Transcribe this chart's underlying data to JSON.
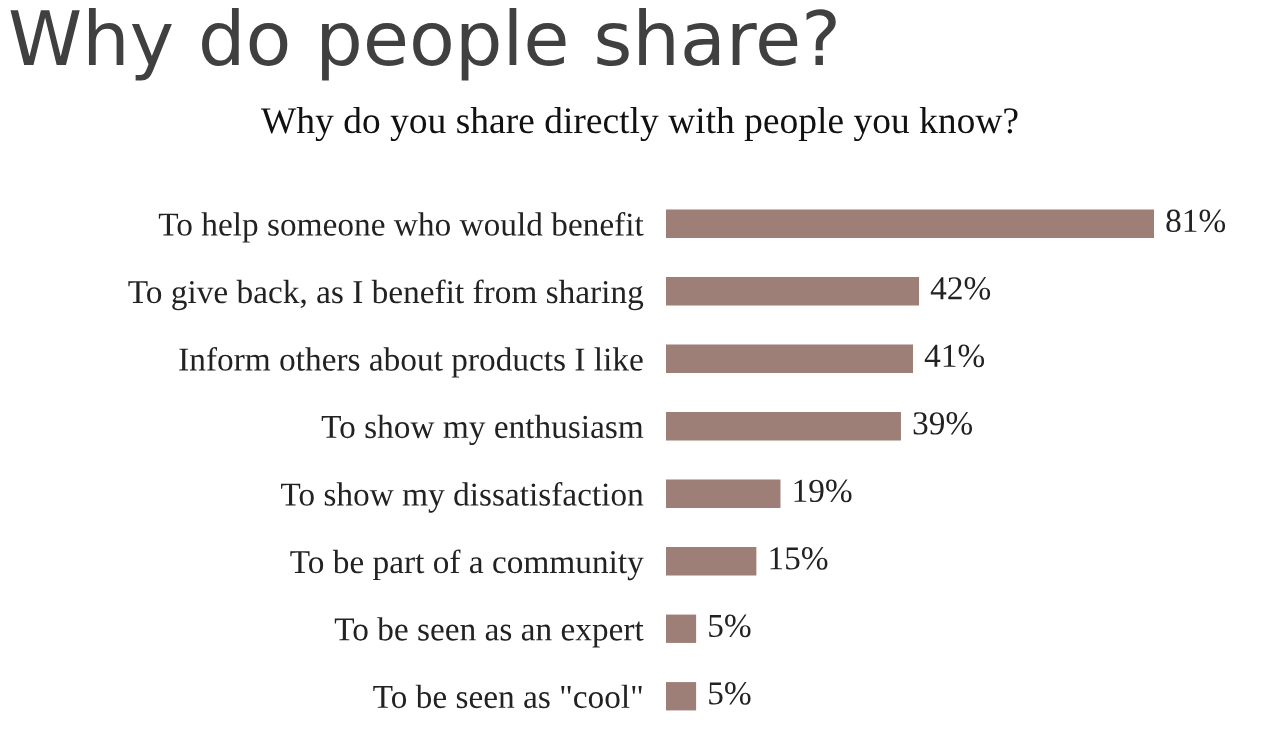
{
  "chart_data": {
    "type": "bar",
    "orientation": "horizontal",
    "title": "Why do people share?",
    "subtitle": "Why do you share directly with people you know?",
    "categories": [
      "To help someone who would benefit",
      "To give back, as I benefit from sharing",
      "Inform others about products I like",
      "To show my enthusiasm",
      "To show my dissatisfaction",
      "To be part of a community",
      "To be seen as an expert",
      "To be seen as \"cool\""
    ],
    "values": [
      81,
      42,
      41,
      39,
      19,
      15,
      5,
      5
    ],
    "value_labels": [
      "81%",
      "42%",
      "41%",
      "39%",
      "19%",
      "15%",
      "5%",
      "5%"
    ],
    "color": "#9e7f77",
    "tick_labels": "y",
    "grid": false,
    "legend": false
  }
}
